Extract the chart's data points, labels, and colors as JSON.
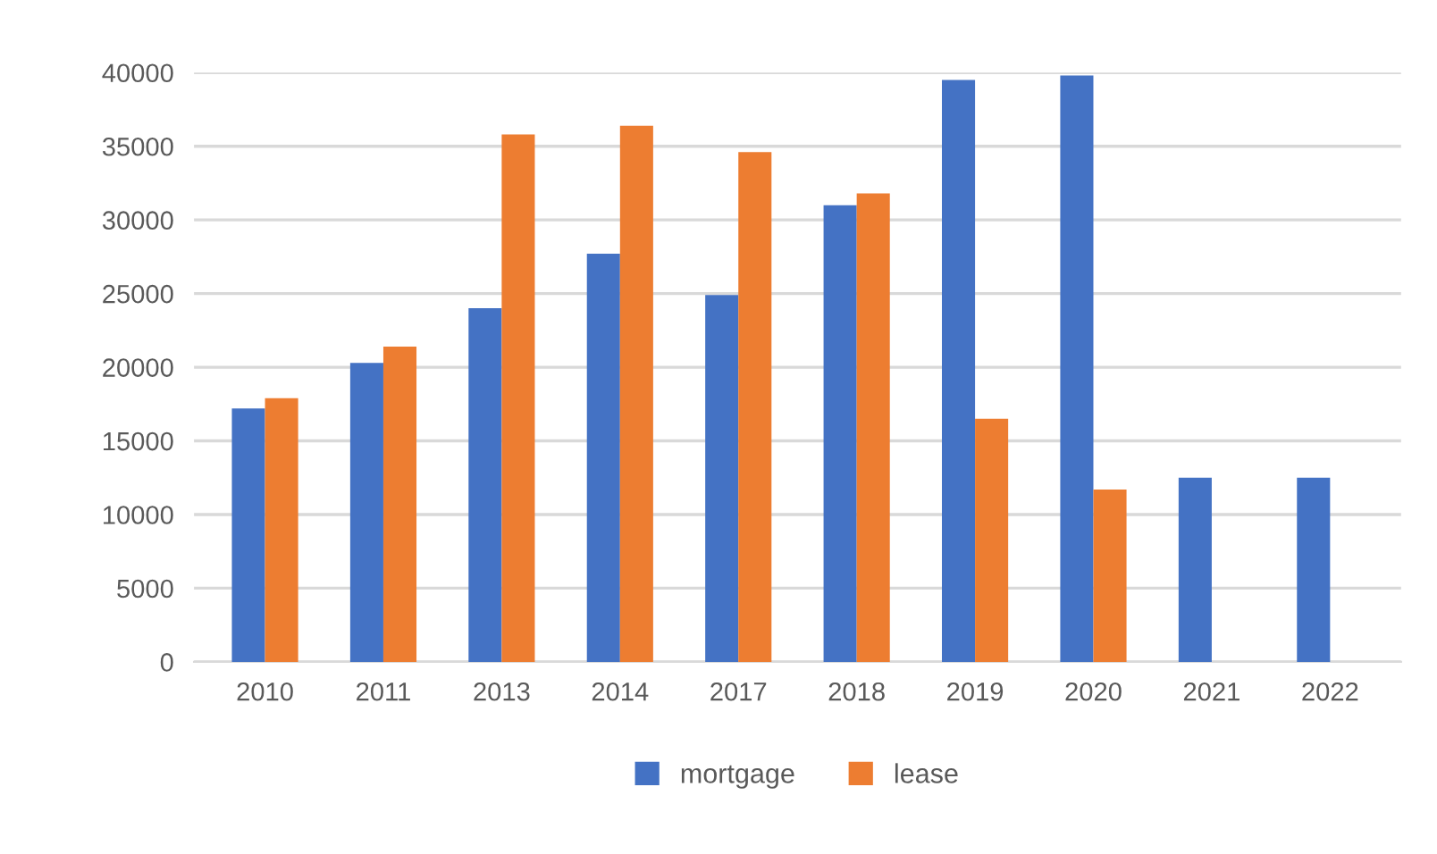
{
  "chart_data": {
    "type": "bar",
    "categories": [
      "2010",
      "2011",
      "2013",
      "2014",
      "2017",
      "2018",
      "2019",
      "2020",
      "2021",
      "2022"
    ],
    "series": [
      {
        "name": "mortgage",
        "color": "#4472c4",
        "values": [
          17200,
          20300,
          24000,
          27700,
          24900,
          31000,
          39500,
          39800,
          12500,
          12500
        ]
      },
      {
        "name": "lease",
        "color": "#ed7d31",
        "values": [
          17900,
          21400,
          35800,
          36400,
          34600,
          31800,
          16500,
          11700,
          null,
          null
        ]
      }
    ],
    "ylim": [
      0,
      40000
    ],
    "yticks": [
      0,
      5000,
      10000,
      15000,
      20000,
      25000,
      30000,
      35000,
      40000
    ],
    "grid": "y",
    "legend": "bottom"
  }
}
